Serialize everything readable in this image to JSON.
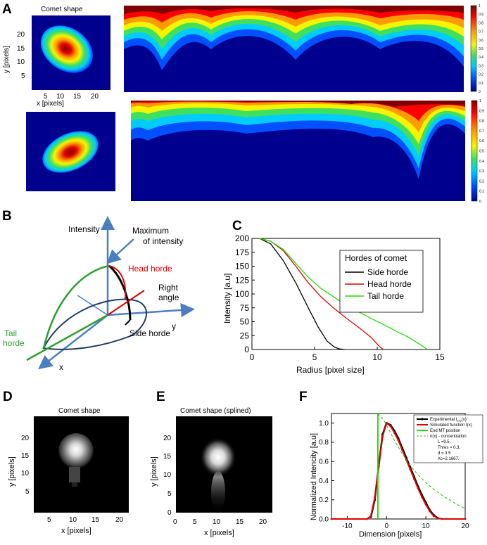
{
  "panels": {
    "A": {
      "label": "A",
      "comet_title": "Comet  shape",
      "ylabel": "y [pixels]",
      "xlabel": "x [pixels]",
      "yticks": [
        "20",
        "15",
        "10",
        "5"
      ],
      "xticks": [
        "5",
        "10",
        "15",
        "20"
      ],
      "colorbar_ticks": [
        "1",
        "0.9",
        "0.8",
        "0.7",
        "0.6",
        "0.5",
        "0.4",
        "0.3",
        "0.2",
        "0.1",
        "0"
      ],
      "colors": {
        "dark_red": "#7f0000",
        "red": "#ff0000",
        "orange": "#ff9a00",
        "yellow": "#f5f500",
        "green": "#3fe060",
        "cyan": "#00ccff",
        "blue": "#0050ff",
        "navy": "#00008f"
      }
    },
    "B": {
      "label": "B",
      "intensity": "Intensity",
      "maximum_1": "Maximum",
      "maximum_2": "of intensity",
      "head_horde": "Head horde",
      "right_1": "Right",
      "right_2": "angle",
      "y": "y",
      "tail_1": "Tail",
      "tail_2": "horde",
      "side_horde": "Side horde",
      "x": "x",
      "colors": {
        "axis": "#4a7fc1",
        "tail": "#2ca02c",
        "head": "#e00000",
        "body": "#1f3a6b"
      }
    },
    "C": {
      "label": "C",
      "ylabel": "Intensity [a.u]",
      "xlabel": "Radius [pixel  size]",
      "legend_title": "Hordes of comet",
      "colors": {
        "side": "#000000",
        "head": "#e00000",
        "tail": "#22dd00"
      }
    },
    "D": {
      "label": "D",
      "title": "Comet  shape",
      "ylabel": "y [pixels]",
      "xlabel": "x [pixels]",
      "yticks": [
        "20",
        "15",
        "10",
        "5"
      ],
      "xticks": [
        "5",
        "10",
        "15",
        "20"
      ]
    },
    "E": {
      "label": "E",
      "title": "Comet  shape (splined)",
      "ylabel": "y [pixels]",
      "xlabel": "x [pixels]",
      "yticks": [
        "20",
        "15",
        "10",
        "5",
        "0"
      ],
      "xticks": [
        "0",
        "5",
        "10",
        "15",
        "20"
      ]
    },
    "F": {
      "label": "F",
      "ylabel": "Normalized Intencity [a.u]",
      "xlabel": "Dimension [pixels]",
      "legend": {
        "experimental": "Experimental I",
        "experimental_sub": "exp",
        "experimental_tail": "(x)",
        "simulated": "Simulated function I(x)",
        "end_mt": "End MT position",
        "concentration": "n(x) - concentration",
        "p1": "L =9.5,",
        "p2": "Thres = 0.3,",
        "p3": "d  = 3.5",
        "p4": "Xc=2.1667."
      },
      "colors": {
        "experimental": "#000000",
        "simulated": "#e00000",
        "end_mt": "#22dd00",
        "concentration": "#22cc00"
      }
    }
  },
  "chart_data": [
    {
      "id": "C",
      "type": "line",
      "title": "",
      "xlabel": "Radius [pixel  size]",
      "ylabel": "Intensity [a.u]",
      "xlim": [
        0,
        15
      ],
      "ylim": [
        0,
        200
      ],
      "xticks": [
        0,
        5,
        10,
        15
      ],
      "yticks": [
        0,
        25,
        50,
        75,
        100,
        125,
        150,
        175,
        200
      ],
      "legend_title": "Hordes of comet",
      "legend_position": "top-right",
      "series": [
        {
          "name": "Side  horde",
          "x": [
            0.6,
            1.5,
            2.5,
            3.5,
            4.5,
            5.3,
            6.0,
            6.6,
            7.0,
            7.4
          ],
          "y": [
            200,
            190,
            160,
            120,
            75,
            40,
            15,
            4,
            1,
            0
          ]
        },
        {
          "name": "Head horde",
          "x": [
            0.6,
            1.5,
            2.5,
            3.5,
            4.5,
            5.5,
            6.5,
            7.5,
            8.5,
            9.5,
            10.2,
            10.5
          ],
          "y": [
            200,
            195,
            178,
            150,
            120,
            95,
            75,
            57,
            40,
            22,
            5,
            0
          ]
        },
        {
          "name": "Tail horde",
          "x": [
            0.6,
            1.5,
            2.5,
            3.5,
            4.5,
            5.5,
            6.5,
            7.5,
            8.5,
            9.5,
            10.5,
            11.5,
            12.5,
            13.5,
            14.0
          ],
          "y": [
            200,
            195,
            180,
            155,
            130,
            110,
            95,
            80,
            68,
            56,
            45,
            33,
            22,
            8,
            0
          ]
        }
      ]
    },
    {
      "id": "F",
      "type": "line",
      "title": "",
      "xlabel": "Dimension [pixels]",
      "ylabel": "Normalized Intencity [a.u]",
      "xlim": [
        -14,
        20
      ],
      "ylim": [
        0,
        1.1
      ],
      "xticks": [
        -10,
        0,
        10,
        20
      ],
      "yticks": [
        0.0,
        0.2,
        0.4,
        0.6,
        0.8,
        1.0
      ],
      "legend_position": "top-right",
      "series": [
        {
          "name": "Experimental I_exp(x)",
          "x": [
            -4,
            -3,
            -2,
            -1,
            0,
            1,
            2,
            3,
            4,
            5,
            6,
            7,
            8,
            9,
            10,
            11,
            12,
            13
          ],
          "y": [
            0.02,
            0.2,
            0.55,
            0.88,
            1.0,
            0.98,
            0.92,
            0.84,
            0.74,
            0.64,
            0.54,
            0.44,
            0.34,
            0.25,
            0.17,
            0.09,
            0.04,
            0.01
          ]
        },
        {
          "name": "Simulated function I(x)",
          "x": [
            -14,
            -5,
            -4,
            -3,
            -2,
            -1,
            0,
            1,
            2,
            3,
            4,
            5,
            6,
            7,
            8,
            9,
            10,
            11,
            12,
            13,
            14,
            20
          ],
          "y": [
            0,
            0,
            0.03,
            0.22,
            0.55,
            0.86,
            1.0,
            0.97,
            0.9,
            0.82,
            0.72,
            0.62,
            0.52,
            0.42,
            0.32,
            0.23,
            0.15,
            0.08,
            0.03,
            0.01,
            0,
            0
          ]
        },
        {
          "name": "End MT position",
          "x": [
            -2.2,
            -2.2
          ],
          "y": [
            0,
            1.1
          ]
        },
        {
          "name": "n(x) - concentration",
          "x": [
            -2.2,
            -1,
            0,
            1,
            2,
            4,
            6,
            8,
            10,
            12,
            14,
            16,
            18,
            20
          ],
          "y": [
            1.1,
            1.05,
            0.98,
            0.9,
            0.82,
            0.68,
            0.56,
            0.46,
            0.38,
            0.31,
            0.25,
            0.2,
            0.15,
            0.11
          ]
        }
      ]
    }
  ]
}
